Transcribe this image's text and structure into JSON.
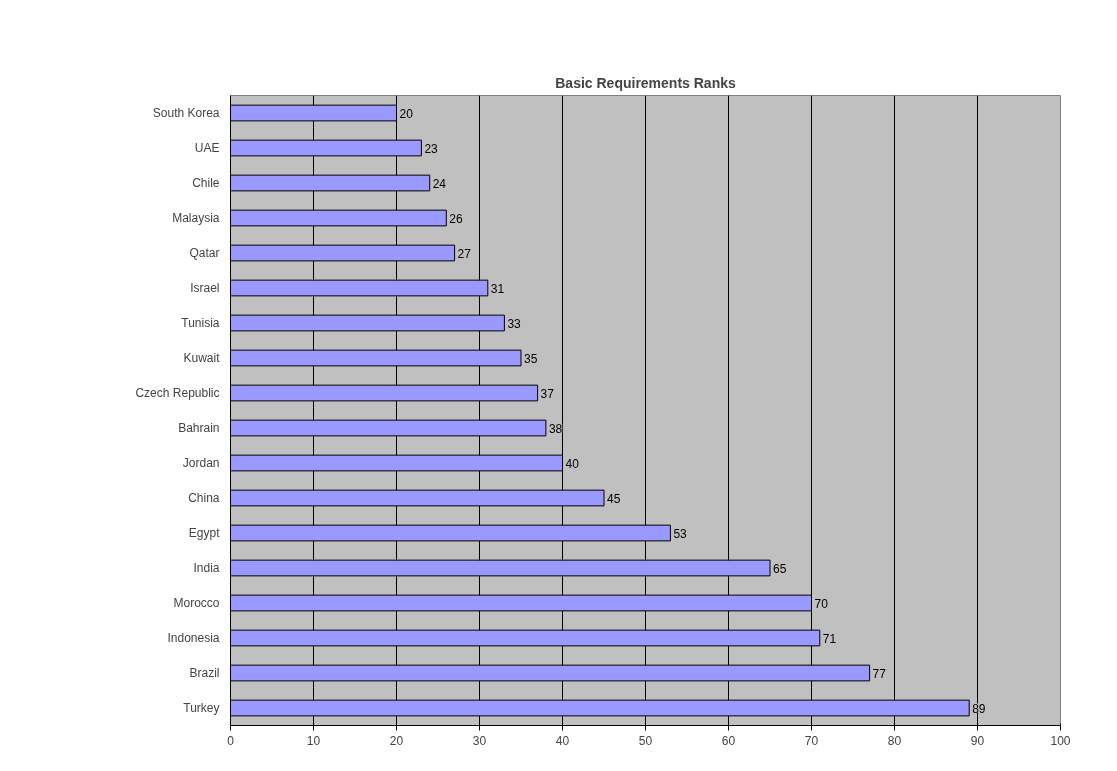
{
  "chart_data": {
    "type": "bar",
    "orientation": "horizontal",
    "title": "Basic Requirements Ranks",
    "categories": [
      "South Korea",
      "UAE",
      "Chile",
      "Malaysia",
      "Qatar",
      "Israel",
      "Tunisia",
      "Kuwait",
      "Czech Republic",
      "Bahrain",
      "Jordan",
      "China",
      "Egypt",
      "India",
      "Morocco",
      "Indonesia",
      "Brazil",
      "Turkey"
    ],
    "values": [
      20,
      23,
      24,
      26,
      27,
      31,
      33,
      35,
      37,
      38,
      40,
      45,
      53,
      65,
      70,
      71,
      77,
      89
    ],
    "color": "#9999ff",
    "xlim": [
      0,
      100
    ],
    "xticks": [
      0,
      10,
      20,
      30,
      40,
      50,
      60,
      70,
      80,
      90,
      100
    ],
    "grid": "x",
    "data_labels": true
  }
}
